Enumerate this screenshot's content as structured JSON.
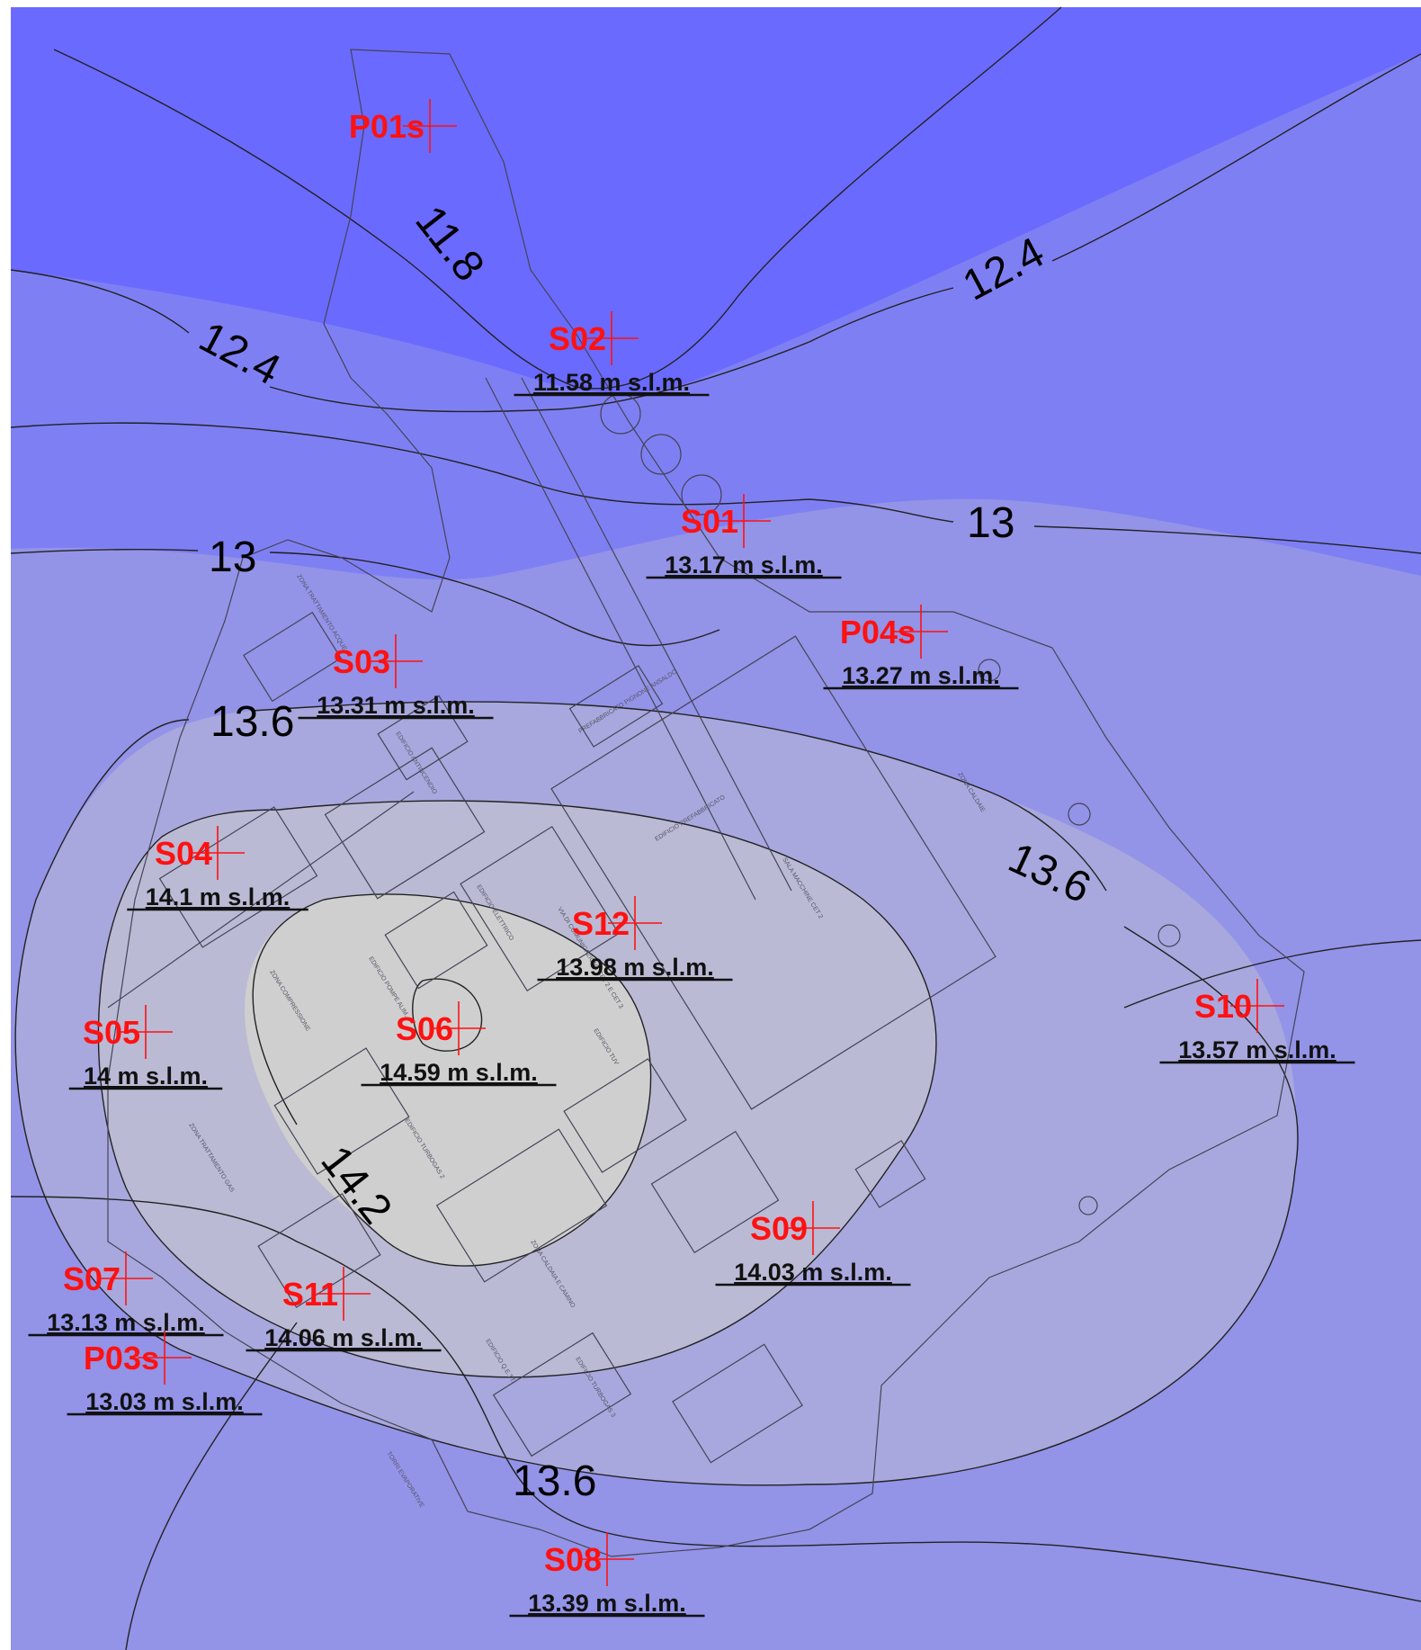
{
  "colors": {
    "high": "#6a6aff",
    "mid1": "#7f7ff4",
    "mid2": "#9393e8",
    "mid3": "#a8a8de",
    "low1": "#babad5",
    "low2": "#cfcfcf",
    "well": "#ff1111",
    "level": "#111111",
    "contour": "#222222",
    "buildings": "#444455"
  },
  "contour_labels": [
    "11.8",
    "12.4",
    "12.4",
    "13",
    "13",
    "13.6",
    "13.6",
    "13.6",
    "14.2"
  ],
  "wells": [
    {
      "name": "P01s",
      "level": ""
    },
    {
      "name": "S02",
      "level": "11.58 m s.l.m."
    },
    {
      "name": "S01",
      "level": "13.17 m s.l.m."
    },
    {
      "name": "P04s",
      "level": "13.27 m s.l.m."
    },
    {
      "name": "S03",
      "level": "13.31 m s.l.m."
    },
    {
      "name": "S04",
      "level": "14.1 m s.l.m."
    },
    {
      "name": "S12",
      "level": "13.98 m s.l.m."
    },
    {
      "name": "S10",
      "level": "13.57 m s.l.m."
    },
    {
      "name": "S05",
      "level": "14 m s.l.m."
    },
    {
      "name": "S06",
      "level": "14.59 m s.l.m."
    },
    {
      "name": "S09",
      "level": "14.03 m s.l.m."
    },
    {
      "name": "S07",
      "level": "13.13 m s.l.m."
    },
    {
      "name": "S11",
      "level": "14.06 m s.l.m."
    },
    {
      "name": "P03s",
      "level": "13.03 m s.l.m."
    },
    {
      "name": "S08",
      "level": "13.39 m s.l.m."
    }
  ],
  "building_labels": [
    "ZONA TRATTAMENTO ACQUE",
    "EDIFICIO ANTINCENDIO",
    "PREFABBRICATO PIGNONE ANSALDO",
    "EDIFICIO PREFABBRICATO",
    "SALA MACCHINE CET 2",
    "ZONA CALDAIE",
    "ZONA COMPRESSIONE",
    "EDIFICIO POMPE ALIM.",
    "EDIFICIO ELETTRICO",
    "VIA DI COMUNICAZIONE CET 2 E CET 3",
    "EDIFICIO TURBOGAS 2",
    "EDIFICIO TURBOGAS 3",
    "ZONA CALDAIA E CAMINO",
    "ZONA TRATTAMENTO GAS",
    "TORRI EVAPORATIVE",
    "EDIFICIO Q.E.TT.",
    "EDIFICIO TUV"
  ]
}
